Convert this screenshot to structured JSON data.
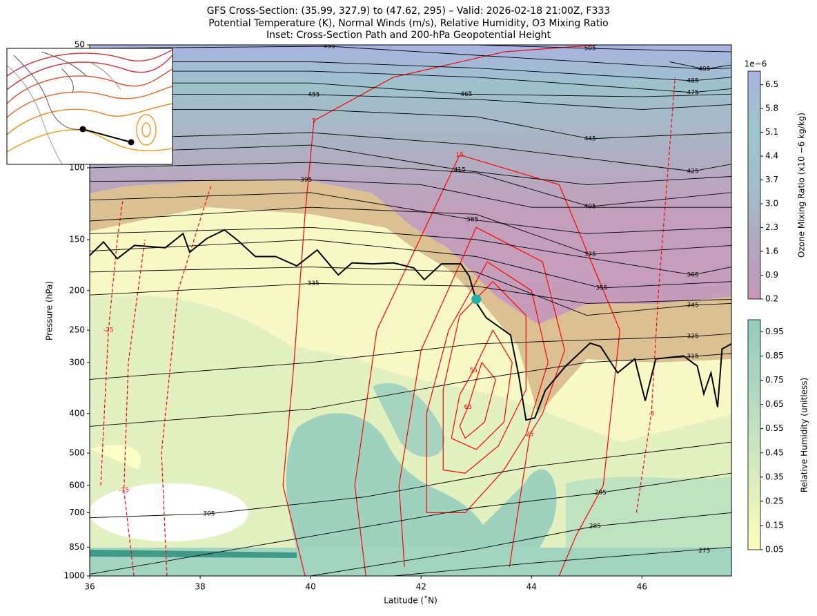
{
  "chart_data": {
    "type": "contour",
    "title_lines": [
      "GFS Cross-Section: (35.99, 327.9) to (47.62, 295) – Valid: 2026-02-18 21:00Z, F333",
      "Potential Temperature (K), Normal Winds (m/s), Relative Humidity, O3 Mixing Ratio",
      "Inset: Cross-Section Path and 200-hPa Geopotential Height"
    ],
    "x_label": "Latitude (˚N)",
    "y_label": "Pressure (hPa)",
    "xlim": [
      36,
      47.62
    ],
    "xticks": [
      36,
      38,
      40,
      42,
      44,
      46
    ],
    "ylim": [
      1000,
      50
    ],
    "yscale": "log",
    "yticks": [
      50,
      100,
      150,
      200,
      250,
      300,
      400,
      500,
      600,
      700,
      850,
      1000
    ],
    "theta_color": "#000000",
    "theta_contours": [
      {
        "label": 275,
        "label_lat": 47.13,
        "label_p": 868,
        "lat": [
          41.5,
          44,
          47.62
        ],
        "p": [
          1000,
          930,
          850
        ]
      },
      {
        "label": 285,
        "label_lat": 45.15,
        "label_p": 755,
        "lat": [
          40,
          43,
          45.15,
          47.62
        ],
        "p": [
          1000,
          860,
          755,
          700
        ]
      },
      {
        "label": 295,
        "label_lat": 45.25,
        "label_p": 625,
        "lat": [
          36,
          40,
          43,
          45.25,
          47.62
        ],
        "p": [
          990,
          800,
          680,
          625,
          560
        ]
      },
      {
        "label": 305,
        "label_lat": 38.16,
        "label_p": 704,
        "lat": [
          36,
          38.16,
          41,
          44,
          47.62
        ],
        "p": [
          720,
          704,
          640,
          540,
          470
        ]
      },
      {
        "label": 315,
        "label_lat": 46.92,
        "label_p": 290,
        "lat": [
          36,
          40,
          43,
          45,
          46.92,
          47.62
        ],
        "p": [
          430,
          390,
          330,
          300,
          290,
          285
        ]
      },
      {
        "label": 325,
        "label_lat": 46.92,
        "label_p": 259,
        "lat": [
          36,
          40,
          43,
          46.92,
          47.62
        ],
        "p": [
          330,
          300,
          270,
          259,
          255
        ]
      },
      {
        "label": 335,
        "label_lat": 40.05,
        "label_p": 192,
        "lat": [
          36,
          40.05,
          43,
          45,
          47.62
        ],
        "p": [
          205,
          192,
          195,
          215,
          210
        ]
      },
      {
        "label": 345,
        "label_lat": 46.92,
        "label_p": 217,
        "lat": [
          36,
          40,
          43,
          45,
          46.92,
          47.62
        ],
        "p": [
          180,
          175,
          180,
          230,
          217,
          215
        ]
      },
      {
        "label": 355,
        "label_lat": 45.27,
        "label_p": 197,
        "lat": [
          36,
          40,
          43,
          45.27,
          47.62
        ],
        "p": [
          160,
          150,
          165,
          197,
          190
        ]
      },
      {
        "label": 365,
        "label_lat": 46.92,
        "label_p": 183,
        "lat": [
          36,
          40,
          43,
          46.92,
          47.62
        ],
        "p": [
          145,
          140,
          150,
          183,
          175
        ]
      },
      {
        "label": 375,
        "label_lat": 45.06,
        "label_p": 163,
        "lat": [
          36,
          40,
          43,
          45.06,
          47.62
        ],
        "p": [
          135,
          125,
          130,
          163,
          155
        ]
      },
      {
        "label": 385,
        "label_lat": 42.93,
        "label_p": 134,
        "lat": [
          36,
          40,
          42.93,
          45,
          47.62
        ],
        "p": [
          120,
          115,
          134,
          145,
          140
        ]
      },
      {
        "label": 395,
        "label_lat": 39.92,
        "label_p": 107,
        "lat": [
          36,
          39.92,
          42,
          44,
          47.62
        ],
        "p": [
          108,
          107,
          110,
          125,
          125
        ]
      },
      {
        "label": 405,
        "label_lat": 45.06,
        "label_p": 124.5,
        "lat": [
          36,
          40,
          43,
          45.06,
          47.62
        ],
        "p": [
          100,
          97,
          103,
          124.5,
          115
        ]
      },
      {
        "label": 415,
        "label_lat": 42.7,
        "label_p": 101.2,
        "lat": [
          36,
          40,
          42.7,
          45,
          47.62
        ],
        "p": [
          92,
          88,
          101.2,
          110,
          105
        ]
      },
      {
        "label": 425,
        "label_lat": 46.92,
        "label_p": 102,
        "lat": [
          36,
          40,
          43,
          46.92,
          47.62
        ],
        "p": [
          85,
          82,
          88,
          102,
          98
        ]
      },
      {
        "label": 445,
        "label_lat": 45.06,
        "label_p": 84.9,
        "lat": [
          36,
          40,
          43,
          45.06,
          47.62
        ],
        "p": [
          72,
          72,
          75,
          84.9,
          82
        ]
      },
      {
        "label": 455,
        "label_lat": 40.06,
        "label_p": 66.2,
        "lat": [
          36,
          40.06,
          43,
          46,
          47.62
        ],
        "p": [
          66,
          66.2,
          68,
          72,
          70
        ]
      },
      {
        "label": 465,
        "label_lat": 42.82,
        "label_p": 66,
        "lat": [
          36,
          40,
          42.82,
          46,
          47.62
        ],
        "p": [
          62,
          62,
          66,
          67,
          66
        ]
      },
      {
        "label": 475,
        "label_lat": 46.92,
        "label_p": 65.4,
        "lat": [
          36,
          40,
          43,
          46.92,
          47.62
        ],
        "p": [
          58,
          58,
          60,
          65.4,
          64
        ]
      },
      {
        "label": 485,
        "label_lat": 46.92,
        "label_p": 61.2,
        "lat": [
          36,
          40,
          43,
          46.92,
          47.62
        ],
        "p": [
          55,
          55,
          57,
          61.2,
          60
        ]
      },
      {
        "label": 495,
        "label_lat": 40.34,
        "label_p": 50.4,
        "lat": [
          36,
          40.34,
          43,
          47.13,
          47.62
        ],
        "p": [
          51,
          50.4,
          53,
          57.3,
          56
        ]
      },
      {
        "label": 495,
        "label_lat": 47.13,
        "label_p": 57.3,
        "lat": [
          46.5,
          47.13,
          47.62
        ],
        "p": [
          55,
          57.3,
          57
        ]
      },
      {
        "label": 505,
        "label_lat": 45.06,
        "label_p": 51,
        "lat": [
          43,
          45.06,
          47.62
        ],
        "p": [
          50,
          51,
          52
        ]
      }
    ],
    "wind_color": "#ff0000",
    "wind_contours": [
      {
        "value": -25,
        "label_lat": 36.34,
        "label_p": 250,
        "lat": [
          36.2,
          36.34,
          36.5,
          36.6
        ],
        "p": [
          600,
          250,
          150,
          120
        ]
      },
      {
        "value": -15,
        "label_lat": 36.62,
        "label_p": 617,
        "lat": [
          36.8,
          36.62,
          36.7,
          37.0
        ],
        "p": [
          1000,
          617,
          300,
          150
        ]
      },
      {
        "value": -5,
        "lat": [
          37.4,
          37.3,
          37.6,
          38.2
        ],
        "p": [
          1000,
          500,
          200,
          110
        ]
      },
      {
        "value": -5,
        "label_lat": 46.17,
        "label_p": 400,
        "lat": [
          45.9,
          46.17,
          46.3,
          46.6
        ],
        "p": [
          700,
          400,
          200,
          60
        ]
      },
      {
        "value": 5,
        "label_lat": 40.06,
        "label_p": 76.7,
        "lat": [
          39.9,
          39.5,
          39.7,
          39.9,
          40.06,
          41.5,
          43.5,
          45.2
        ],
        "p": [
          1000,
          600,
          300,
          130,
          76.7,
          60,
          52,
          50
        ]
      },
      {
        "value": 15,
        "label_lat": 42.7,
        "label_p": 93,
        "lat": [
          41,
          40.8,
          41.2,
          42.7,
          44.5,
          45.6,
          45.3,
          44.8,
          44.5
        ],
        "p": [
          1000,
          600,
          250,
          93,
          110,
          250,
          600,
          800,
          1000
        ]
      },
      {
        "value": 25,
        "label_lat": 43.97,
        "label_p": 450,
        "lat": [
          41.7,
          41.6,
          42,
          43,
          44.2,
          44.6,
          44.2,
          43.97,
          43.6
        ],
        "p": [
          950,
          600,
          280,
          140,
          170,
          280,
          400,
          450,
          950
        ]
      },
      {
        "value": 35,
        "lat": [
          42.1,
          42.1,
          42.5,
          43.2,
          44,
          44.3,
          43.9,
          43.5,
          42.8,
          42.1
        ],
        "p": [
          700,
          400,
          250,
          170,
          200,
          300,
          450,
          550,
          700,
          700
        ]
      },
      {
        "value": 45,
        "lat": [
          42.4,
          42.4,
          42.7,
          43.3,
          43.9,
          43.9,
          43.4,
          42.8,
          42.4
        ],
        "p": [
          550,
          350,
          230,
          190,
          230,
          350,
          480,
          560,
          550
        ]
      },
      {
        "value": 55,
        "label_lat": 42.95,
        "label_p": 314,
        "lat": [
          42.55,
          42.7,
          42.95,
          43.3,
          43.65,
          43.5,
          43.0,
          42.55
        ],
        "p": [
          460,
          360,
          314,
          250,
          300,
          420,
          490,
          460
        ]
      },
      {
        "value": 65,
        "label_lat": 42.85,
        "label_p": 386,
        "lat": [
          42.7,
          42.85,
          43.1,
          43.35,
          43.15,
          42.8,
          42.7
        ],
        "p": [
          430,
          386,
          300,
          330,
          420,
          460,
          430
        ]
      }
    ],
    "tropopause": {
      "color": "#000000",
      "lat": [
        36.0,
        36.25,
        36.5,
        36.81,
        37.37,
        37.69,
        37.81,
        38.12,
        38.44,
        38.69,
        39.0,
        39.37,
        39.75,
        40.12,
        40.5,
        40.75,
        41.12,
        41.5,
        41.87,
        42.06,
        42.37,
        42.72,
        42.87,
        43.02,
        43.18,
        43.62,
        43.77,
        43.9,
        44.06,
        44.25,
        44.62,
        45.06,
        45.25,
        45.56,
        45.87,
        46.06,
        46.25,
        46.75,
        47.0,
        47.12,
        47.25,
        47.37,
        47.45,
        47.62
      ],
      "p": [
        164,
        152,
        167,
        155,
        157,
        145,
        161,
        149,
        142,
        151,
        165,
        165,
        174,
        159,
        183,
        171,
        172,
        171,
        176,
        188,
        172,
        172,
        184,
        216,
        233,
        257,
        324,
        415,
        410,
        351,
        306,
        269,
        274,
        318,
        294,
        372,
        294,
        289,
        306,
        358,
        318,
        386,
        278,
        270
      ]
    },
    "marker": {
      "lat": 43.0,
      "p": 210,
      "color": "#20b2aa"
    },
    "ozone_colorbar": {
      "label": "Ozone Mixing Ratio (x10 −6 kg/kg)",
      "offset_text": "1e−6",
      "lim": [
        0.2,
        6.9
      ],
      "ticks": [
        0.2,
        0.9,
        1.6,
        2.3,
        {
          "value": 3.0,
          "label": "3.0"
        },
        3.7,
        4.4,
        5.1,
        5.8,
        6.5
      ],
      "colors": [
        "#c898b8",
        "#b0a8c0",
        "#a2c0c8",
        "#9ec6cc",
        "#a8b4e2"
      ]
    },
    "rh_colorbar": {
      "label": "Relative Humidity (unitless)",
      "lim": [
        0.05,
        1.0
      ],
      "ticks": [
        0.05,
        0.15,
        0.25,
        0.35,
        0.45,
        0.55,
        0.65,
        0.75,
        0.85,
        0.95
      ],
      "colors": [
        "#fdfdc0",
        "#e2f0bc",
        "#c4e4c0",
        "#a8d6c2",
        "#96cbbc"
      ]
    }
  }
}
